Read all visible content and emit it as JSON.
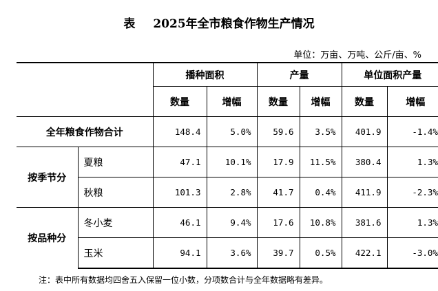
{
  "title": {
    "prefix": "表",
    "text": "2025年全市粮食作物生产情况"
  },
  "unit": "单位：万亩、万吨、公斤/亩、%",
  "headers": {
    "groups": [
      "播种面积",
      "产量",
      "单位面积产量"
    ],
    "sub": [
      "数量",
      "增幅",
      "数量",
      "增幅",
      "数量",
      "增幅"
    ]
  },
  "total": {
    "label": "全年粮食作物合计",
    "values": [
      "148.4",
      "5.0%",
      "59.6",
      "3.5%",
      "401.9",
      "-1.4%"
    ]
  },
  "groups": [
    {
      "label": "按季节分",
      "rows": [
        {
          "label": "夏粮",
          "values": [
            "47.1",
            "10.1%",
            "17.9",
            "11.5%",
            "380.4",
            "1.3%"
          ]
        },
        {
          "label": "秋粮",
          "values": [
            "101.3",
            "2.8%",
            "41.7",
            "0.4%",
            "411.9",
            "-2.3%"
          ]
        }
      ]
    },
    {
      "label": "按品种分",
      "rows": [
        {
          "label": "冬小麦",
          "values": [
            "46.1",
            "9.4%",
            "17.6",
            "10.8%",
            "381.6",
            "1.3%"
          ]
        },
        {
          "label": "玉米",
          "values": [
            "94.1",
            "3.6%",
            "39.7",
            "0.5%",
            "422.1",
            "-3.0%"
          ]
        }
      ]
    }
  ],
  "note": "注：表中所有数据均四舍五入保留一位小数，分项数合计与全年数据略有差异。"
}
